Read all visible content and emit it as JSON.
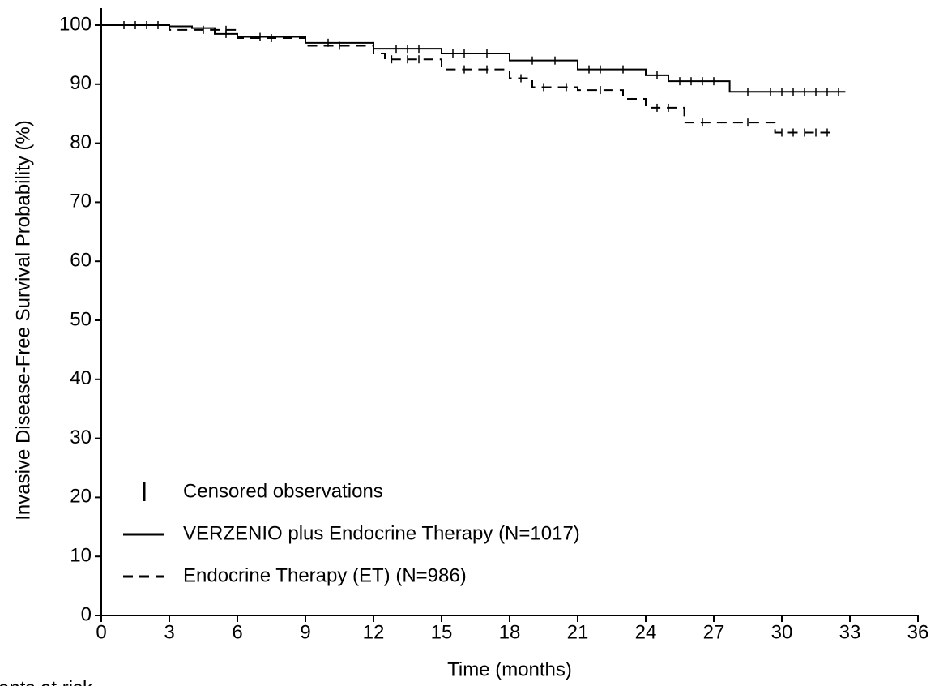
{
  "chart_data": {
    "type": "step",
    "ylabel": "Invasive Disease-Free Survival Probability (%)",
    "xlabel": "Time (months)",
    "note": "tients at risk",
    "censor_label": "Censored observations",
    "xlim": [
      0,
      36
    ],
    "xticks": [
      0,
      3,
      6,
      9,
      12,
      15,
      18,
      21,
      24,
      27,
      30,
      33,
      36
    ],
    "ylim": [
      0,
      100
    ],
    "yticks": [
      0,
      10,
      20,
      30,
      40,
      50,
      60,
      70,
      80,
      90,
      100
    ],
    "legend": "lower left",
    "series": [
      {
        "name": "VERZENIO plus Endocrine Therapy (N=1017)",
        "color": "#000000",
        "dash": "none",
        "x": [
          0,
          3,
          4,
          5,
          6,
          9,
          12,
          15,
          18,
          21,
          24,
          25,
          27.7,
          32.8
        ],
        "values": [
          100,
          99.8,
          99.5,
          98.5,
          98,
          97,
          96,
          95.2,
          94,
          92.5,
          91.5,
          90.5,
          88.7,
          88.7
        ],
        "censored": [
          1,
          2,
          5.5,
          7,
          10,
          13,
          13.5,
          14,
          15.5,
          16,
          17,
          19,
          20,
          21.5,
          22,
          23,
          24.5,
          25.5,
          26,
          26.5,
          27,
          28.5,
          29.5,
          30,
          30.5,
          31,
          31.5,
          32,
          32.5
        ]
      },
      {
        "name": "Endocrine Therapy (ET) (N=986)",
        "color": "#000000",
        "dash": "12 8",
        "x": [
          0,
          3,
          6,
          9,
          12,
          12.5,
          15,
          18,
          19,
          21,
          23,
          24,
          25.7,
          29.7,
          32.3
        ],
        "values": [
          100,
          99.2,
          97.8,
          96.5,
          95.2,
          94.2,
          92.5,
          91,
          89.5,
          89,
          87.5,
          86,
          83.5,
          81.8,
          81.8
        ],
        "censored": [
          1.5,
          2.5,
          4.5,
          5.5,
          7.5,
          10.5,
          12.8,
          13.5,
          14,
          16,
          17,
          18.5,
          19.5,
          20.5,
          22,
          24.5,
          25,
          26.5,
          28.5,
          30,
          30.5,
          31,
          31.5,
          32
        ]
      }
    ]
  }
}
